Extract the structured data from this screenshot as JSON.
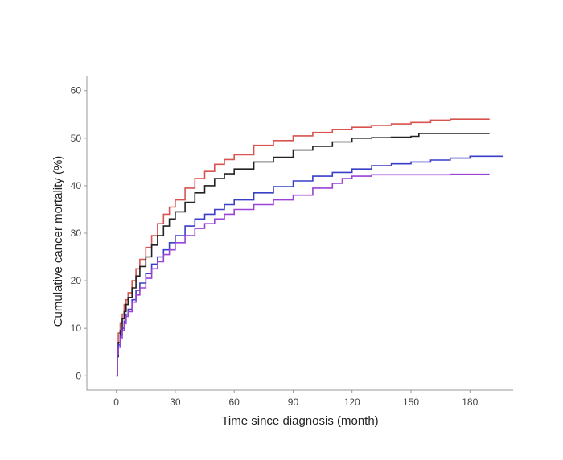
{
  "chart_data": {
    "type": "line",
    "xlabel": "Time since diagnosis (month)",
    "ylabel": "Cumulative cancer mortality (%)",
    "xlim": [
      -15,
      202
    ],
    "ylim": [
      -3,
      63
    ],
    "xticks": [
      0,
      30,
      60,
      90,
      120,
      150,
      180
    ],
    "yticks": [
      0,
      10,
      20,
      30,
      40,
      50,
      60
    ],
    "grid": false,
    "step": true,
    "series": [
      {
        "color": "#d9534f",
        "x": [
          0,
          0.5,
          1,
          2,
          3,
          4,
          5,
          6,
          8,
          10,
          12,
          15,
          18,
          21,
          24,
          27,
          30,
          35,
          40,
          45,
          50,
          55,
          60,
          70,
          80,
          90,
          100,
          110,
          120,
          130,
          140,
          150,
          160,
          170,
          180,
          190
        ],
        "y": [
          0,
          6,
          9,
          11,
          13,
          15,
          16,
          17.5,
          20,
          22.5,
          24.5,
          27,
          29.5,
          32,
          34,
          35.5,
          37,
          39.5,
          41.5,
          43,
          44.5,
          45.5,
          46.5,
          48.5,
          49.5,
          50.5,
          51.2,
          51.8,
          52.3,
          52.7,
          53.0,
          53.3,
          53.8,
          54.0,
          54.0,
          54.0
        ]
      },
      {
        "color": "#222222",
        "x": [
          0,
          0.5,
          1,
          2,
          3,
          4,
          5,
          6,
          8,
          10,
          12,
          15,
          18,
          21,
          24,
          27,
          30,
          35,
          40,
          45,
          50,
          55,
          60,
          70,
          80,
          90,
          100,
          110,
          120,
          130,
          140,
          150,
          154,
          160,
          170,
          180,
          190
        ],
        "y": [
          0,
          4,
          7,
          9.5,
          12,
          13.5,
          15,
          16.5,
          18.5,
          21,
          23,
          25,
          27.5,
          29.5,
          31.5,
          33,
          34.5,
          36.5,
          38.5,
          40,
          41.5,
          42.5,
          43.5,
          45,
          46,
          47.5,
          48.3,
          49.2,
          50,
          50.1,
          50.2,
          50.4,
          51,
          51,
          51,
          51,
          51
        ]
      },
      {
        "color": "#3a3fc7",
        "x": [
          0,
          0.5,
          1,
          2,
          3,
          4,
          5,
          6,
          8,
          10,
          12,
          15,
          18,
          21,
          24,
          27,
          30,
          35,
          40,
          45,
          50,
          55,
          60,
          70,
          80,
          90,
          100,
          110,
          120,
          130,
          140,
          150,
          160,
          170,
          180,
          190,
          197
        ],
        "y": [
          0,
          5,
          6.5,
          8.5,
          10,
          11.5,
          13,
          14,
          16,
          18,
          19.5,
          21.5,
          23.5,
          25,
          26.5,
          28,
          29.5,
          31.5,
          33,
          34,
          35,
          36,
          37,
          38.5,
          39.8,
          41,
          42,
          42.8,
          43.5,
          44.2,
          44.6,
          45,
          45.4,
          45.8,
          46.2,
          46.2,
          46.2
        ]
      },
      {
        "color": "#9b42d6",
        "x": [
          0,
          0.5,
          1,
          2,
          3,
          4,
          5,
          6,
          8,
          10,
          12,
          15,
          18,
          21,
          24,
          27,
          30,
          35,
          40,
          45,
          50,
          55,
          60,
          70,
          80,
          90,
          100,
          110,
          115,
          120,
          130,
          140,
          150,
          160,
          170,
          180,
          190
        ],
        "y": [
          0,
          4.5,
          6,
          8,
          9.5,
          11,
          12.5,
          13.5,
          15.5,
          17,
          18.5,
          20.5,
          22.5,
          24,
          25.5,
          26.5,
          28,
          29.5,
          31,
          32,
          33,
          34,
          35,
          36,
          37,
          38,
          39.5,
          40.5,
          41.5,
          42,
          42.3,
          42.3,
          42.3,
          42.3,
          42.4,
          42.4,
          42.4
        ]
      }
    ]
  }
}
